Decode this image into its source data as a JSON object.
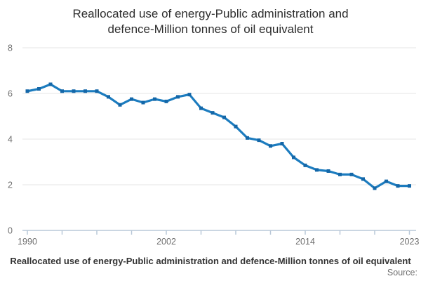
{
  "title": {
    "full": "Reallocated use of energy-Public administration and defence-Million tonnes of oil equivalent",
    "lines": [
      "Reallocated use of energy-Public administration and",
      "defence-Million tonnes of oil equivalent"
    ]
  },
  "chart_data": {
    "type": "line",
    "title": "Reallocated use of energy-Public administration and defence-Million tonnes of oil equivalent",
    "x": [
      1990,
      1991,
      1992,
      1993,
      1994,
      1995,
      1996,
      1997,
      1998,
      1999,
      2000,
      2001,
      2002,
      2003,
      2004,
      2005,
      2006,
      2007,
      2008,
      2009,
      2010,
      2011,
      2012,
      2013,
      2014,
      2015,
      2016,
      2017,
      2018,
      2019,
      2020,
      2021,
      2022,
      2023
    ],
    "values": [
      6.1,
      6.2,
      6.4,
      6.1,
      6.1,
      6.1,
      6.1,
      5.85,
      5.5,
      5.75,
      5.6,
      5.75,
      5.65,
      5.85,
      5.95,
      5.35,
      5.15,
      4.95,
      4.55,
      4.05,
      3.95,
      3.7,
      3.8,
      3.2,
      2.85,
      2.65,
      2.6,
      2.45,
      2.45,
      2.25,
      1.85,
      2.15,
      1.95,
      1.95
    ],
    "xlabel": "",
    "ylabel": "",
    "ylim": [
      0,
      8
    ],
    "yticks": [
      0,
      2,
      4,
      6,
      8
    ],
    "xticks": [
      1990,
      1993,
      1996,
      1999,
      2002,
      2005,
      2008,
      2011,
      2014,
      2017,
      2020,
      2023
    ],
    "xtick_labels": [
      "1990",
      "2002",
      "2014",
      "2023"
    ],
    "xtick_label_years": [
      1990,
      2002,
      2014,
      2023
    ],
    "grid": "horizontal",
    "legend": "none"
  },
  "footer": {
    "caption": "Reallocated use of energy-Public administration and defence-Million tonnes of oil equivalent",
    "source_label": "Source:"
  },
  "colors": {
    "line": "#1c7cbf",
    "marker": "#1467a8",
    "grid": "#e6e6e6",
    "axis": "#b9c8d8",
    "tick_text": "#6f6f6f",
    "title_text": "#2d2d2d",
    "caption_text": "#333333",
    "background": "#ffffff"
  }
}
